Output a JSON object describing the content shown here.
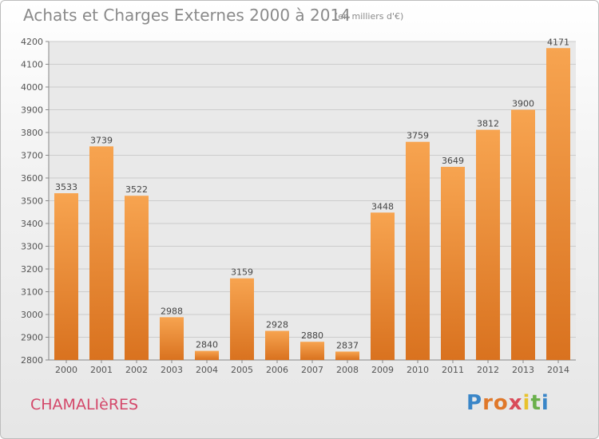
{
  "chart_data": {
    "type": "bar",
    "title": "Achats et Charges Externes 2000 à 2014",
    "subtitle": "(en milliers d'€)",
    "categories": [
      "2000",
      "2001",
      "2002",
      "2003",
      "2004",
      "2005",
      "2006",
      "2007",
      "2008",
      "2009",
      "2010",
      "2011",
      "2012",
      "2013",
      "2014"
    ],
    "values": [
      3533,
      3739,
      3522,
      2988,
      2840,
      3159,
      2928,
      2880,
      2837,
      3448,
      3759,
      3649,
      3812,
      3900,
      4171
    ],
    "ylim": [
      2800,
      4200
    ],
    "yticks": [
      2800,
      2900,
      3000,
      3100,
      3200,
      3300,
      3400,
      3500,
      3600,
      3700,
      3800,
      3900,
      4000,
      4100,
      4200
    ],
    "grid": true,
    "bar_color_top": "#f7a450",
    "bar_color_bottom": "#d9721f"
  },
  "footer": {
    "place": "CHAMALIèRES",
    "logo": {
      "letters": [
        "P",
        "r",
        "o",
        "x",
        "i",
        "t",
        "i"
      ],
      "colors": [
        "#3a86c8",
        "#e0782a",
        "#e0782a",
        "#d94b5a",
        "#e8c22c",
        "#6ab04c",
        "#3a86c8"
      ]
    }
  }
}
